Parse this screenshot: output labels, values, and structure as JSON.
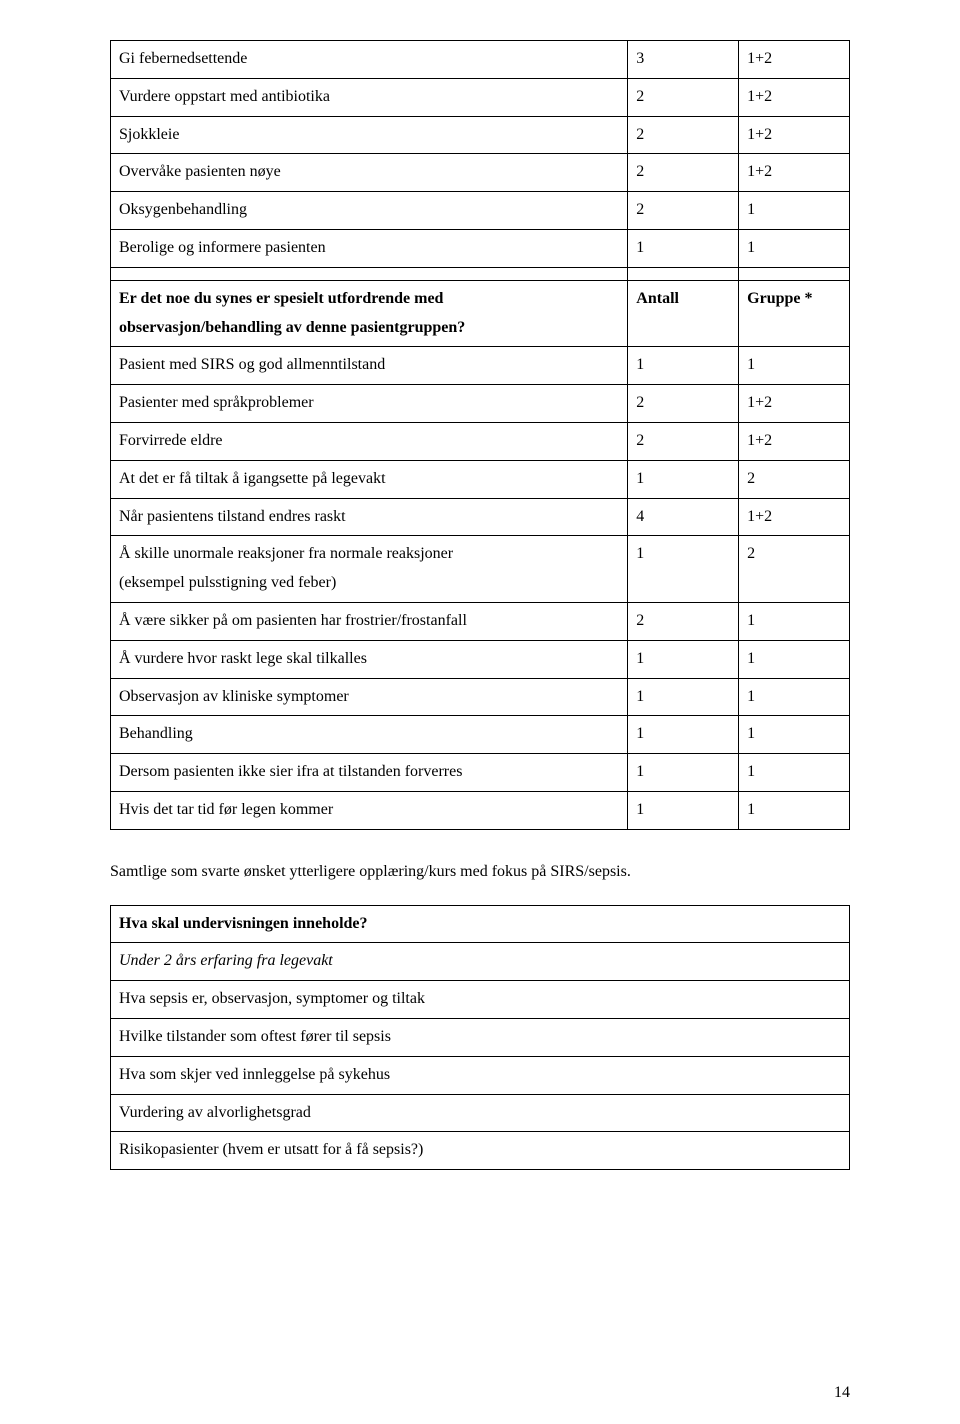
{
  "table1": {
    "rows": [
      {
        "c0": "Gi febernedsettende",
        "c1": "3",
        "c2": "1+2"
      },
      {
        "c0": "Vurdere oppstart med antibiotika",
        "c1": "2",
        "c2": "1+2"
      },
      {
        "c0": "Sjokkleie",
        "c1": "2",
        "c2": "1+2"
      },
      {
        "c0": "Overvåke pasienten nøye",
        "c1": "2",
        "c2": "1+2"
      },
      {
        "c0": "Oksygenbehandling",
        "c1": "2",
        "c2": "1"
      },
      {
        "c0": "Berolige og informere pasienten",
        "c1": "1",
        "c2": "1"
      }
    ],
    "header2": {
      "c0a": "Er det noe du synes er spesielt utfordrende med",
      "c0b": "observasjon/behandling av denne pasientgruppen?",
      "c1": "Antall",
      "c2": "Gruppe *"
    },
    "rows2": [
      {
        "c0": "Pasient med SIRS og god allmenntilstand",
        "c1": "1",
        "c2": "1"
      },
      {
        "c0": "Pasienter med språkproblemer",
        "c1": "2",
        "c2": "1+2"
      },
      {
        "c0": "Forvirrede eldre",
        "c1": "2",
        "c2": "1+2"
      },
      {
        "c0": "At det er få tiltak å igangsette på legevakt",
        "c1": "1",
        "c2": "2"
      },
      {
        "c0": "Når pasientens tilstand endres raskt",
        "c1": "4",
        "c2": "1+2"
      },
      {
        "c0a": "Å skille unormale reaksjoner fra normale reaksjoner",
        "c0b": "(eksempel pulsstigning ved feber)",
        "c1": "1",
        "c2": "2"
      },
      {
        "c0": "Å være sikker på om pasienten har frostrier/frostanfall",
        "c1": "2",
        "c2": "1"
      },
      {
        "c0": "Å vurdere hvor raskt lege skal tilkalles",
        "c1": "1",
        "c2": "1"
      },
      {
        "c0": "Observasjon av kliniske symptomer",
        "c1": "1",
        "c2": "1"
      },
      {
        "c0": "Behandling",
        "c1": "1",
        "c2": "1"
      },
      {
        "c0": "Dersom pasienten ikke sier ifra at tilstanden forverres",
        "c1": "1",
        "c2": "1"
      },
      {
        "c0": "Hvis det tar tid før legen kommer",
        "c1": "1",
        "c2": "1"
      }
    ]
  },
  "paragraph": "Samtlige som svarte ønsket ytterligere opplæring/kurs med fokus på SIRS/sepsis.",
  "table2": {
    "header": "Hva skal undervisningen inneholde?",
    "rows": [
      "Under 2 års erfaring fra legevakt",
      "Hva sepsis er, observasjon, symptomer og tiltak",
      "Hvilke tilstander som oftest fører til sepsis",
      "Hva som skjer ved innleggelse på sykehus",
      "Vurdering av alvorlighetsgrad",
      "Risikopasienter (hvem er utsatt for å få sepsis?)"
    ]
  },
  "page_number": "14"
}
